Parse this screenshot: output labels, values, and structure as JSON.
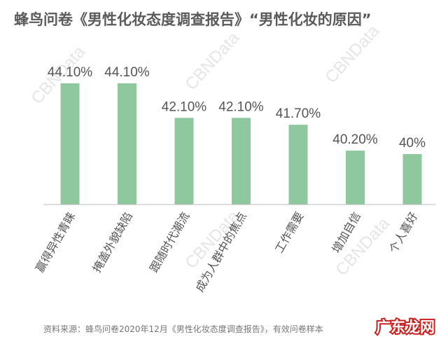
{
  "title": "蜂鸟问卷《男性化妆态度调查报告》“男性化妆的原因”",
  "source": "资料来源：蜂鸟问卷2020年12月《男性化妆态度调查报告》，有效问卷样本",
  "watermark": "CBNData",
  "logo_text": "广东龙网",
  "colors": {
    "bar": "#8fc79e",
    "axis": "#bdbdbd",
    "label": "#555555",
    "watermark": "#e6e6e6",
    "logo": "#cc1f1f"
  },
  "chart_data": {
    "type": "bar",
    "categories": [
      "赢得异性青睐",
      "掩盖外貌缺陷",
      "跟随时代潮流",
      "成为人群中的焦点",
      "工作需要",
      "增加自信",
      "个人喜好"
    ],
    "values": [
      44.1,
      44.1,
      42.1,
      42.1,
      41.7,
      40.2,
      40.0
    ],
    "data_labels": [
      "44.10%",
      "44.10%",
      "42.10%",
      "42.10%",
      "41.70%",
      "40.20%",
      "40%"
    ],
    "unit": "%"
  }
}
